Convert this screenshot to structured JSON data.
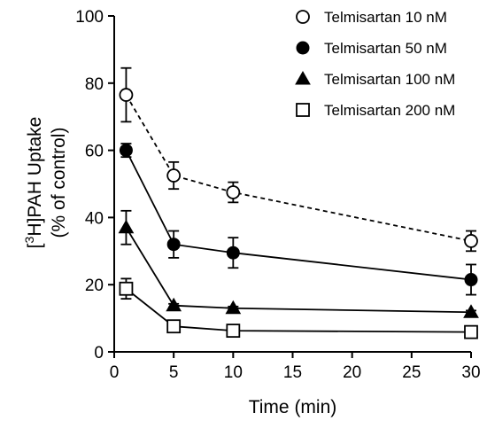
{
  "chart_data": {
    "type": "line",
    "xlabel": "Time (min)",
    "ylabel": {
      "line1_prefix": "[",
      "line1_sup": "3",
      "line1_rest": "H]PAH Uptake",
      "line2": "(% of control)"
    },
    "xlim": [
      0,
      30
    ],
    "ylim": [
      0,
      100
    ],
    "xticks": [
      0,
      5,
      10,
      15,
      20,
      25,
      30
    ],
    "yticks": [
      0,
      20,
      40,
      60,
      80,
      100
    ],
    "grid": false,
    "legend_position": "top-right",
    "series": [
      {
        "name": "Telmisartan 10 nM",
        "marker": "open-circle",
        "line_style": "dashed",
        "x": [
          1,
          5,
          10,
          30
        ],
        "y": [
          76.5,
          52.5,
          47.5,
          33
        ],
        "error": [
          8,
          4,
          3,
          3
        ]
      },
      {
        "name": "Telmisartan 50 nM",
        "marker": "filled-circle",
        "line_style": "solid",
        "x": [
          1,
          5,
          10,
          30
        ],
        "y": [
          60,
          32,
          29.5,
          21.5
        ],
        "error": [
          2,
          4,
          4.5,
          4.5
        ]
      },
      {
        "name": "Telmisartan 100 nM",
        "marker": "filled-triangle",
        "line_style": "solid",
        "x": [
          1,
          5,
          10,
          30
        ],
        "y": [
          37,
          13.8,
          13,
          11.8
        ],
        "error": [
          5,
          0.5,
          0.5,
          0.5
        ]
      },
      {
        "name": "Telmisartan 200 nM",
        "marker": "open-square",
        "line_style": "solid",
        "x": [
          1,
          5,
          10,
          30
        ],
        "y": [
          18.8,
          7.6,
          6.3,
          5.9
        ],
        "error": [
          3,
          0.5,
          0.5,
          0.5
        ]
      }
    ],
    "colors": {
      "line": "#000000",
      "background": "#ffffff"
    }
  }
}
